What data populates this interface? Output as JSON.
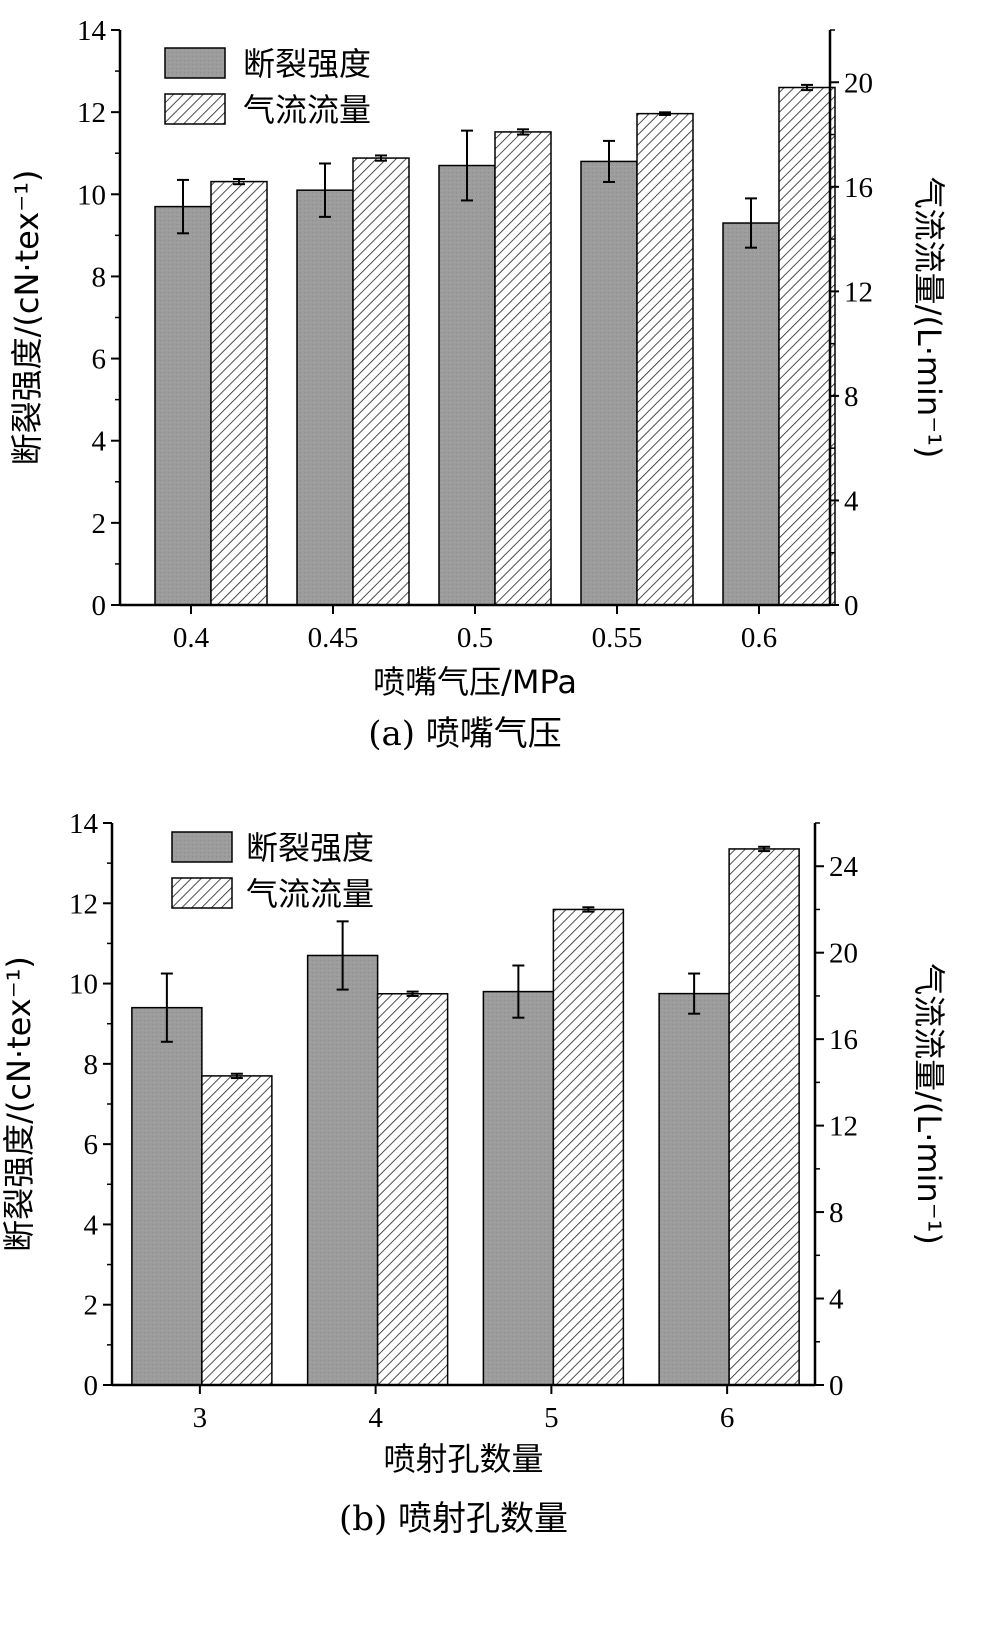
{
  "chart_data": [
    {
      "type": "bar",
      "panel": "a",
      "caption": "(a)  喷嘴气压",
      "categories": [
        "0.4",
        "0.45",
        "0.5",
        "0.55",
        "0.6"
      ],
      "xlabel": "喷嘴气压/MPa",
      "ylabel_left": "断裂强度/(cN·tex⁻¹)",
      "ylabel_right": "气流流量/(L·min⁻¹)",
      "ylim_left": [
        0,
        14
      ],
      "yticks_left": [
        0,
        2,
        4,
        6,
        8,
        10,
        12,
        14
      ],
      "ylim_right": [
        0,
        22
      ],
      "yticks_right": [
        0,
        4,
        8,
        12,
        16,
        20
      ],
      "legend": [
        "断裂强度",
        "气流流量"
      ],
      "legend_position": "top-left",
      "series": [
        {
          "name": "断裂强度",
          "axis": "left",
          "style": "solid-gray",
          "values": [
            9.7,
            10.1,
            10.7,
            10.8,
            9.3
          ],
          "errors": [
            0.65,
            0.65,
            0.85,
            0.5,
            0.6
          ]
        },
        {
          "name": "气流流量",
          "axis": "right",
          "style": "hatched",
          "values": [
            16.2,
            17.1,
            18.1,
            18.8,
            19.8
          ],
          "errors": [
            0.1,
            0.1,
            0.1,
            0.05,
            0.1
          ]
        }
      ]
    },
    {
      "type": "bar",
      "panel": "b",
      "caption": "(b)  喷射孔数量",
      "categories": [
        "3",
        "4",
        "5",
        "6"
      ],
      "xlabel": "喷射孔数量",
      "ylabel_left": "断裂强度/(cN·tex⁻¹)",
      "ylabel_right": "气流流量/(L·min⁻¹)",
      "ylim_left": [
        0,
        14
      ],
      "yticks_left": [
        0,
        2,
        4,
        6,
        8,
        10,
        12,
        14
      ],
      "ylim_right": [
        0,
        26
      ],
      "yticks_right": [
        0,
        4,
        8,
        12,
        16,
        20,
        24
      ],
      "legend": [
        "断裂强度",
        "气流流量"
      ],
      "legend_position": "top-left",
      "series": [
        {
          "name": "断裂强度",
          "axis": "left",
          "style": "solid-gray",
          "values": [
            9.4,
            10.7,
            9.8,
            9.75
          ],
          "errors": [
            0.85,
            0.85,
            0.65,
            0.5
          ]
        },
        {
          "name": "气流流量",
          "axis": "right",
          "style": "hatched",
          "values": [
            14.3,
            18.1,
            22.0,
            24.8
          ],
          "errors": [
            0.1,
            0.1,
            0.1,
            0.1
          ]
        }
      ]
    }
  ]
}
